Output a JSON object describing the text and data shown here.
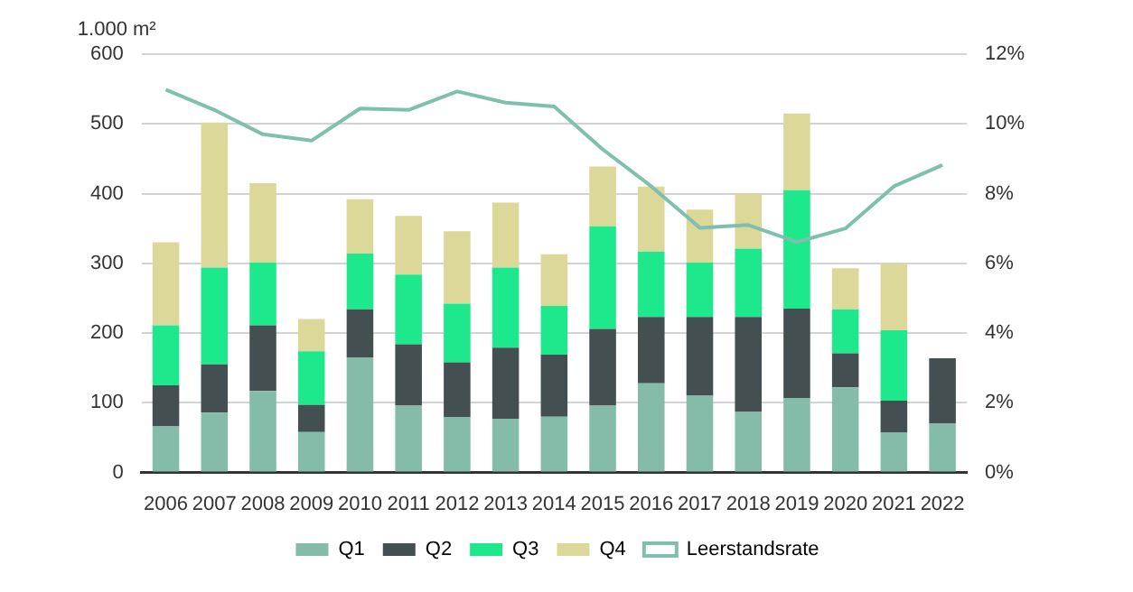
{
  "chart_data": {
    "type": "bar",
    "stacked": true,
    "ylabel": "1.000 m²",
    "categories": [
      "2006",
      "2007",
      "2008",
      "2009",
      "2010",
      "2011",
      "2012",
      "2013",
      "2014",
      "2015",
      "2016",
      "2017",
      "2018",
      "2019",
      "2020",
      "2021",
      "2022"
    ],
    "series": [
      {
        "name": "Q1",
        "color": "#85bba9",
        "values": [
          66,
          86,
          117,
          58,
          165,
          96,
          79,
          77,
          80,
          96,
          128,
          110,
          87,
          107,
          122,
          57,
          70
        ]
      },
      {
        "name": "Q2",
        "color": "#434f50",
        "values": [
          59,
          69,
          94,
          39,
          69,
          88,
          79,
          102,
          89,
          110,
          95,
          113,
          136,
          128,
          49,
          46,
          94
        ]
      },
      {
        "name": "Q3",
        "color": "#1ee88c",
        "values": [
          86,
          139,
          90,
          77,
          80,
          100,
          84,
          115,
          70,
          147,
          94,
          78,
          98,
          170,
          63,
          101,
          null
        ]
      },
      {
        "name": "Q4",
        "color": "#dcd89a",
        "values": [
          119,
          208,
          114,
          46,
          78,
          84,
          104,
          93,
          74,
          86,
          93,
          76,
          79,
          110,
          59,
          96,
          null
        ]
      },
      {
        "name": "Leerstandsrate",
        "type": "line",
        "axis": "y2",
        "color": "#7ec0ad",
        "values": [
          10.98,
          10.4,
          9.7,
          9.52,
          10.44,
          10.4,
          10.93,
          10.61,
          10.5,
          9.27,
          8.21,
          7.02,
          7.1,
          6.61,
          7.0,
          8.21,
          8.82
        ]
      }
    ],
    "ylim": [
      0,
      600
    ],
    "yticks": [
      0,
      100,
      200,
      300,
      400,
      500,
      600
    ],
    "y2lim": [
      0,
      12
    ],
    "y2ticks": [
      {
        "value": 0,
        "label": "0%"
      },
      {
        "value": 2,
        "label": "2%"
      },
      {
        "value": 4,
        "label": "4%"
      },
      {
        "value": 6,
        "label": "6%"
      },
      {
        "value": 8,
        "label": "8%"
      },
      {
        "value": 10,
        "label": "10%"
      },
      {
        "value": 12,
        "label": "12%"
      }
    ],
    "grid": "y",
    "legend": "bottom",
    "marker": "none",
    "line_style": "solid"
  }
}
